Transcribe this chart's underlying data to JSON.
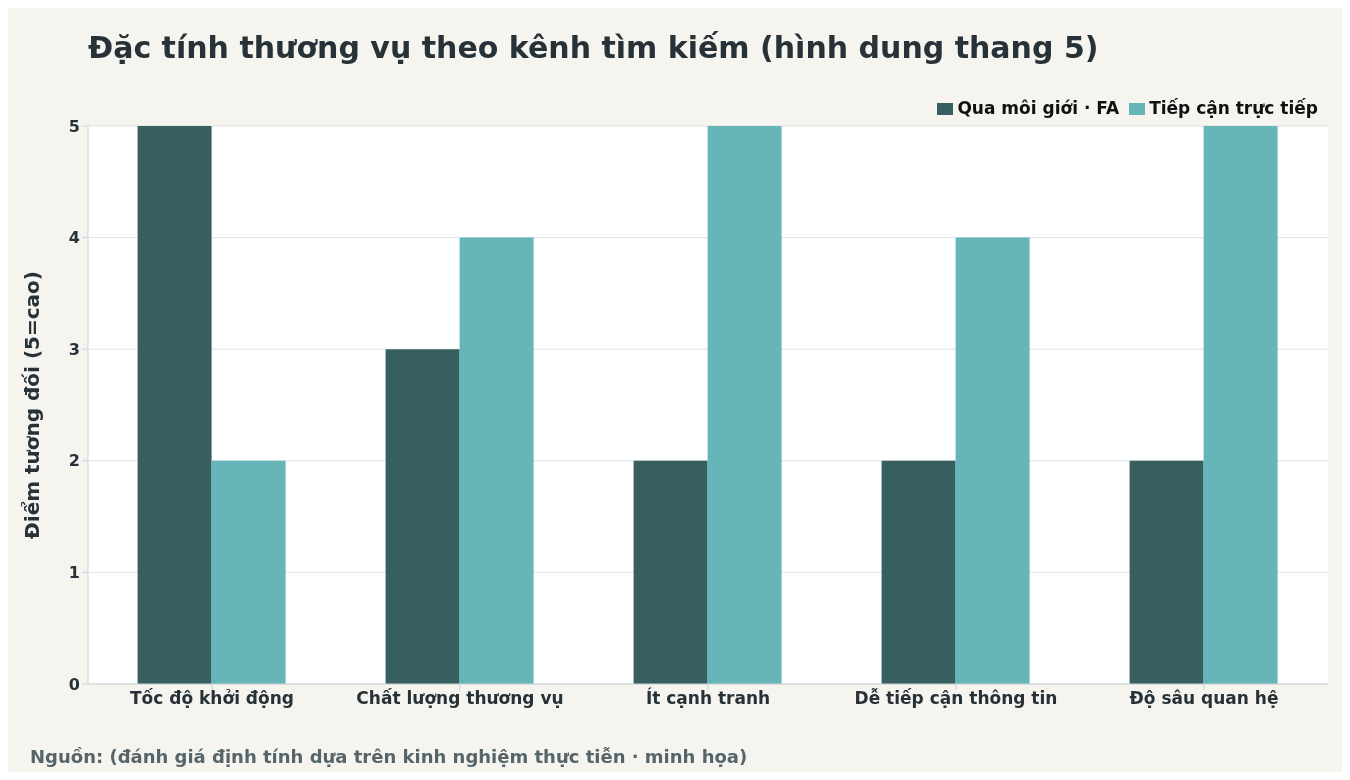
{
  "chart_data": {
    "type": "bar",
    "title": "Đặc tính thương vụ theo kênh tìm kiếm (hình dung thang 5)",
    "ylabel": "Điểm tương đối (5=cao)",
    "categories": [
      "Tốc độ khởi động",
      "Chất lượng thương vụ",
      "Ít cạnh tranh",
      "Dễ tiếp cận thông tin",
      "Độ sâu quan hệ"
    ],
    "series": [
      {
        "name": "Qua môi giới · FA",
        "color": "#375f5f",
        "values": [
          5,
          3,
          2,
          2,
          2
        ]
      },
      {
        "name": "Tiếp cận trực tiếp",
        "color": "#66b5b9",
        "values": [
          2,
          4,
          5,
          4,
          5
        ]
      }
    ],
    "ylim": [
      0,
      5
    ],
    "yticks": [
      0,
      1,
      2,
      3,
      4,
      5
    ],
    "grid": "y",
    "legend": "top right",
    "annotations": [
      "Nguồn: (đánh giá định tính dựa trên kinh nghiệm thực tiễn · minh họa)"
    ]
  }
}
